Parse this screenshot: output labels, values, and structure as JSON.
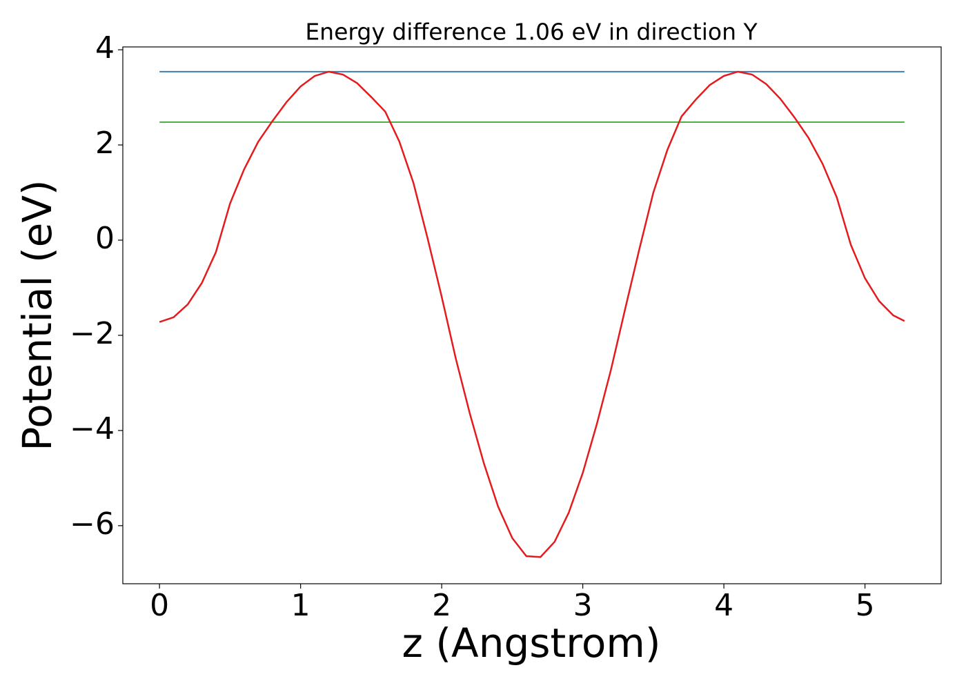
{
  "chart_data": {
    "type": "line",
    "title": "Energy difference 1.06 eV in direction Y",
    "xlabel": "z (Angstrom)",
    "ylabel": "Potential (eV)",
    "xlim": [
      -0.26,
      5.54
    ],
    "ylim": [
      -7.22,
      4.06
    ],
    "xticks": [
      0,
      1,
      2,
      3,
      4,
      5
    ],
    "yticks": [
      {
        "value": -6,
        "label": "−6"
      },
      {
        "value": -4,
        "label": "−4"
      },
      {
        "value": -2,
        "label": "−2"
      },
      0,
      2,
      4
    ],
    "grid": false,
    "series": [
      {
        "color": "#e41a1c",
        "x": [
          0,
          0.1,
          0.2,
          0.3,
          0.4,
          0.5,
          0.6,
          0.7,
          0.8,
          0.9,
          1.0,
          1.1,
          1.2,
          1.3,
          1.4,
          1.5,
          1.6,
          1.7,
          1.8,
          1.9,
          2.0,
          2.1,
          2.2,
          2.3,
          2.4,
          2.5,
          2.6,
          2.7,
          2.8,
          2.9,
          3.0,
          3.1,
          3.2,
          3.3,
          3.4,
          3.5,
          3.6,
          3.7,
          3.8,
          3.9,
          4.0,
          4.1,
          4.2,
          4.3,
          4.4,
          4.5,
          4.6,
          4.7,
          4.8,
          4.9,
          5.0,
          5.1,
          5.2,
          5.28
        ],
        "values": [
          -1.72,
          -1.62,
          -1.35,
          -0.9,
          -0.25,
          0.77,
          1.49,
          2.07,
          2.5,
          2.9,
          3.23,
          3.45,
          3.54,
          3.48,
          3.3,
          3.01,
          2.7,
          2.07,
          1.2,
          0.04,
          -1.19,
          -2.49,
          -3.65,
          -4.7,
          -5.6,
          -6.26,
          -6.64,
          -6.66,
          -6.34,
          -5.73,
          -4.89,
          -3.86,
          -2.72,
          -1.45,
          -0.2,
          1.0,
          1.9,
          2.6,
          2.95,
          3.26,
          3.45,
          3.54,
          3.48,
          3.28,
          2.97,
          2.58,
          2.15,
          1.6,
          0.9,
          -0.1,
          -0.8,
          -1.28,
          -1.58,
          -1.7
        ]
      },
      {
        "color": "#377eb8",
        "x": [
          0,
          5.28
        ],
        "values": [
          3.54,
          3.54
        ]
      },
      {
        "color": "#4daf4a",
        "x": [
          0,
          5.28
        ],
        "values": [
          2.48,
          2.48
        ]
      }
    ]
  }
}
